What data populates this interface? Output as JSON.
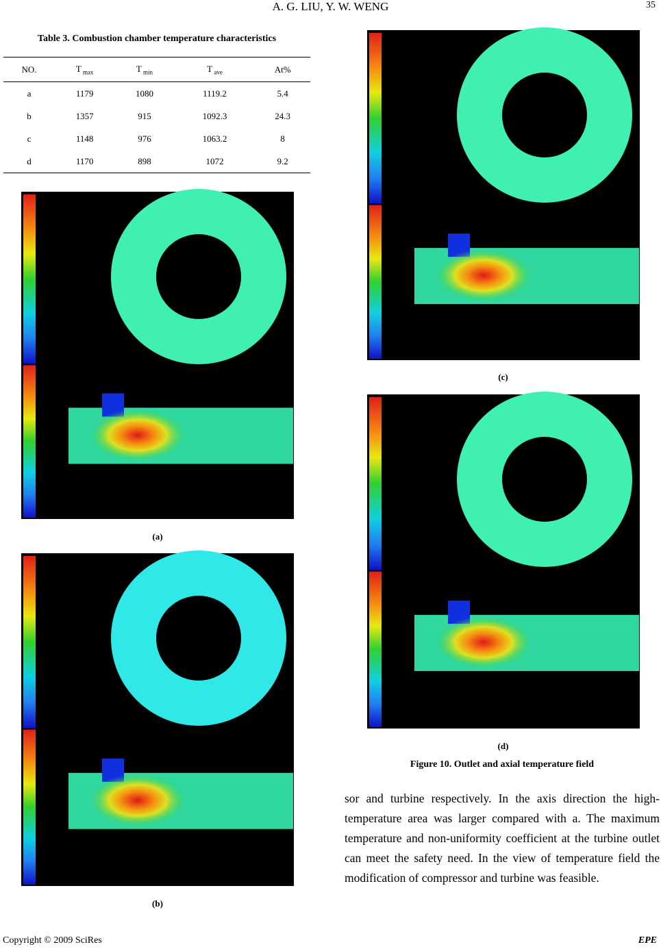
{
  "header": {
    "authors": "A. G. LIU, Y. W. WENG",
    "page": "35"
  },
  "table": {
    "caption": "Table 3. Combustion chamber temperature characteristics",
    "columns": [
      {
        "text": "NO."
      },
      {
        "text": "T",
        "sub": "max"
      },
      {
        "text": "T",
        "sub": "min"
      },
      {
        "text": "T",
        "sub": "ave"
      },
      {
        "text": "At%"
      }
    ],
    "rows": [
      [
        "a",
        "1179",
        "1080",
        "1119.2",
        "5.4"
      ],
      [
        "b",
        "1357",
        "915",
        "1092.3",
        "24.3"
      ],
      [
        "c",
        "1148",
        "976",
        "1063.2",
        "8"
      ],
      [
        "d",
        "1170",
        "898",
        "1072",
        "9.2"
      ]
    ]
  },
  "figures": {
    "panels": [
      "(a)",
      "(b)",
      "(c)",
      "(d)"
    ],
    "caption": "Figure 10. Outlet and axial temperature field"
  },
  "paragraph": "sor and turbine respectively. In the axis direction the high-temperature area was larger compared with a. The maximum temperature and non-uniformity coefficient at the turbine outlet can meet the safety need. In the view of temperature field the modification of compressor and turbine was feasible.",
  "footer": {
    "copyright": "Copyright © 2009 SciRes",
    "journal": "EPE"
  }
}
